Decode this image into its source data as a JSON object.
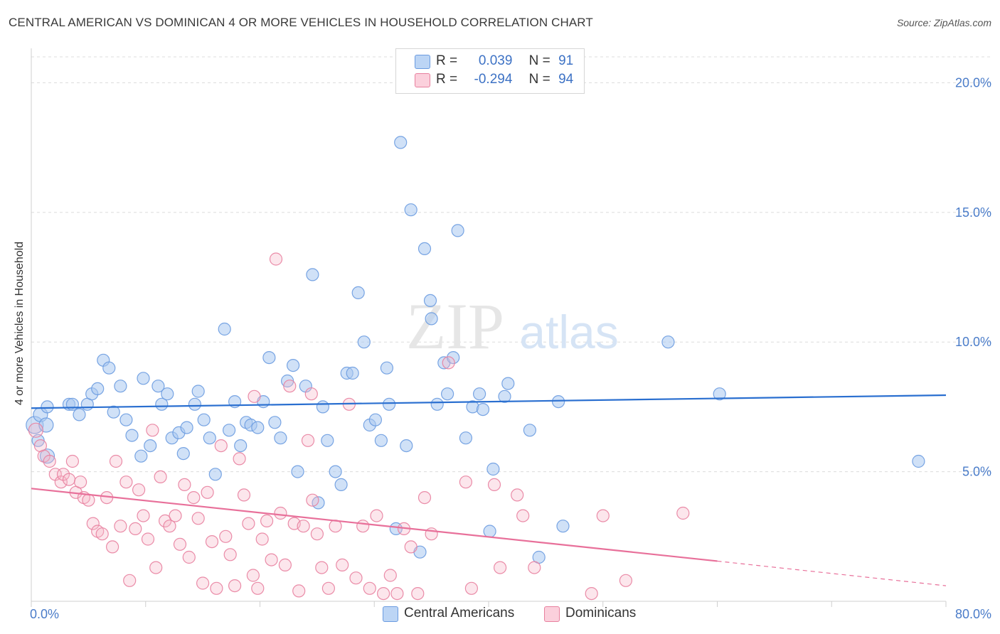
{
  "title": "CENTRAL AMERICAN VS DOMINICAN 4 OR MORE VEHICLES IN HOUSEHOLD CORRELATION CHART",
  "source": "Source: ZipAtlas.com",
  "watermark": {
    "zip": "ZIP",
    "atlas": "atlas"
  },
  "legend": {
    "r_label": "R =",
    "n_label": "N =",
    "rows": [
      {
        "r": "0.039",
        "n": "91",
        "color": "#a9c8f0"
      },
      {
        "r": "-0.294",
        "n": "94",
        "color": "#f5b6c8"
      }
    ]
  },
  "chart_data": {
    "type": "scatter",
    "ylabel": "4 or more Vehicles in Household",
    "xlabel": "",
    "xlim": [
      0,
      80
    ],
    "ylim": [
      0,
      21
    ],
    "x_tick_labels": [
      "0.0%",
      "80.0%"
    ],
    "y_ticks": [
      5,
      10,
      15,
      20
    ],
    "y_tick_labels": [
      "5.0%",
      "10.0%",
      "15.0%",
      "20.0%"
    ],
    "grid": "horizontal dashed",
    "legend_position": "top-center",
    "series": [
      {
        "name": "Central Americans",
        "color": "#a9c8f0",
        "edge": "#6a9be0",
        "trend_color": "#2a6fd0",
        "trend": {
          "x0": 0,
          "y0": 7.45,
          "x1": 80,
          "y1": 7.95
        },
        "points": [
          [
            0.3,
            6.8
          ],
          [
            0.8,
            7.2
          ],
          [
            1.3,
            6.8
          ],
          [
            1.4,
            5.6
          ],
          [
            3.3,
            7.6
          ],
          [
            3.6,
            7.6
          ],
          [
            4.2,
            7.2
          ],
          [
            4.9,
            7.6
          ],
          [
            5.3,
            8.0
          ],
          [
            5.8,
            8.2
          ],
          [
            6.3,
            9.3
          ],
          [
            6.8,
            9.0
          ],
          [
            7.2,
            7.3
          ],
          [
            7.8,
            8.3
          ],
          [
            8.3,
            7.0
          ],
          [
            8.8,
            6.4
          ],
          [
            9.6,
            5.6
          ],
          [
            9.8,
            8.6
          ],
          [
            10.4,
            6.0
          ],
          [
            11.1,
            8.3
          ],
          [
            11.4,
            7.6
          ],
          [
            11.9,
            8.0
          ],
          [
            12.3,
            6.3
          ],
          [
            12.9,
            6.5
          ],
          [
            13.3,
            5.7
          ],
          [
            13.6,
            6.7
          ],
          [
            14.3,
            7.6
          ],
          [
            14.6,
            8.1
          ],
          [
            15.1,
            7.0
          ],
          [
            15.6,
            6.3
          ],
          [
            16.1,
            4.9
          ],
          [
            16.9,
            10.5
          ],
          [
            17.3,
            6.6
          ],
          [
            17.8,
            7.7
          ],
          [
            18.3,
            6.0
          ],
          [
            18.8,
            6.9
          ],
          [
            19.2,
            6.8
          ],
          [
            19.8,
            6.7
          ],
          [
            20.3,
            7.7
          ],
          [
            20.8,
            9.4
          ],
          [
            21.3,
            6.9
          ],
          [
            21.8,
            6.3
          ],
          [
            22.4,
            8.5
          ],
          [
            22.9,
            9.1
          ],
          [
            23.3,
            5.0
          ],
          [
            24.0,
            8.3
          ],
          [
            24.6,
            12.6
          ],
          [
            25.1,
            3.8
          ],
          [
            25.5,
            7.5
          ],
          [
            25.9,
            6.2
          ],
          [
            26.6,
            5.0
          ],
          [
            27.1,
            4.5
          ],
          [
            27.6,
            8.8
          ],
          [
            28.1,
            8.8
          ],
          [
            28.6,
            11.9
          ],
          [
            29.1,
            10.0
          ],
          [
            29.6,
            6.8
          ],
          [
            30.1,
            7.0
          ],
          [
            30.6,
            6.2
          ],
          [
            31.1,
            9.0
          ],
          [
            31.3,
            7.6
          ],
          [
            31.9,
            2.8
          ],
          [
            32.3,
            17.7
          ],
          [
            32.8,
            6.0
          ],
          [
            33.2,
            15.1
          ],
          [
            34.0,
            1.9
          ],
          [
            34.4,
            13.6
          ],
          [
            34.9,
            11.6
          ],
          [
            35.0,
            10.9
          ],
          [
            35.5,
            7.6
          ],
          [
            36.1,
            9.2
          ],
          [
            36.4,
            8.0
          ],
          [
            36.9,
            9.4
          ],
          [
            37.3,
            14.3
          ],
          [
            38.0,
            6.3
          ],
          [
            38.6,
            7.5
          ],
          [
            39.2,
            8.0
          ],
          [
            39.5,
            7.4
          ],
          [
            40.1,
            2.7
          ],
          [
            40.4,
            5.1
          ],
          [
            41.4,
            7.9
          ],
          [
            41.7,
            8.4
          ],
          [
            43.6,
            6.6
          ],
          [
            44.4,
            1.7
          ],
          [
            46.1,
            7.7
          ],
          [
            46.5,
            2.9
          ],
          [
            55.7,
            10.0
          ],
          [
            60.2,
            8.0
          ],
          [
            77.6,
            5.4
          ],
          [
            0.6,
            6.2
          ],
          [
            1.4,
            7.5
          ]
        ]
      },
      {
        "name": "Dominicans",
        "color": "#f5b6c8",
        "edge": "#e8809e",
        "trend_color": "#e8709a",
        "trend": {
          "x0": 0,
          "y0": 4.35,
          "x1": 60,
          "y1": 1.55
        },
        "trend_dashed": {
          "x0": 60,
          "y0": 1.55,
          "x1": 80,
          "y1": 0.6
        },
        "points": [
          [
            0.4,
            6.6
          ],
          [
            0.8,
            6.0
          ],
          [
            1.1,
            5.6
          ],
          [
            1.6,
            5.4
          ],
          [
            2.1,
            4.9
          ],
          [
            2.6,
            4.6
          ],
          [
            2.8,
            4.9
          ],
          [
            3.3,
            4.7
          ],
          [
            3.6,
            5.4
          ],
          [
            3.9,
            4.2
          ],
          [
            4.3,
            4.6
          ],
          [
            4.6,
            4.0
          ],
          [
            5.0,
            3.9
          ],
          [
            5.4,
            3.0
          ],
          [
            5.8,
            2.7
          ],
          [
            6.2,
            2.6
          ],
          [
            6.6,
            4.0
          ],
          [
            7.1,
            2.1
          ],
          [
            7.4,
            5.4
          ],
          [
            7.8,
            2.9
          ],
          [
            8.3,
            4.6
          ],
          [
            8.6,
            0.8
          ],
          [
            9.1,
            2.8
          ],
          [
            9.4,
            4.3
          ],
          [
            9.8,
            3.3
          ],
          [
            10.2,
            2.4
          ],
          [
            10.6,
            6.6
          ],
          [
            10.9,
            1.3
          ],
          [
            11.3,
            4.8
          ],
          [
            11.7,
            3.1
          ],
          [
            12.1,
            2.9
          ],
          [
            12.6,
            3.3
          ],
          [
            13.0,
            2.2
          ],
          [
            13.4,
            4.5
          ],
          [
            13.8,
            1.7
          ],
          [
            14.2,
            4.0
          ],
          [
            14.6,
            3.2
          ],
          [
            15.0,
            0.7
          ],
          [
            15.4,
            4.2
          ],
          [
            15.8,
            2.3
          ],
          [
            16.2,
            0.5
          ],
          [
            16.6,
            6.0
          ],
          [
            17.0,
            2.5
          ],
          [
            17.4,
            1.8
          ],
          [
            17.8,
            0.6
          ],
          [
            18.2,
            5.5
          ],
          [
            18.6,
            4.1
          ],
          [
            19.0,
            3.0
          ],
          [
            19.4,
            1.0
          ],
          [
            19.8,
            0.5
          ],
          [
            20.2,
            2.4
          ],
          [
            20.6,
            3.1
          ],
          [
            21.0,
            1.6
          ],
          [
            21.4,
            13.2
          ],
          [
            21.8,
            3.4
          ],
          [
            22.2,
            1.4
          ],
          [
            22.6,
            8.3
          ],
          [
            23.0,
            3.0
          ],
          [
            23.4,
            0.4
          ],
          [
            23.8,
            2.9
          ],
          [
            24.2,
            6.2
          ],
          [
            24.6,
            3.9
          ],
          [
            25.0,
            2.6
          ],
          [
            25.4,
            1.3
          ],
          [
            26.0,
            0.5
          ],
          [
            26.6,
            2.9
          ],
          [
            27.2,
            1.4
          ],
          [
            27.8,
            7.6
          ],
          [
            28.4,
            0.9
          ],
          [
            29.0,
            2.9
          ],
          [
            29.6,
            0.5
          ],
          [
            30.2,
            3.3
          ],
          [
            30.8,
            0.3
          ],
          [
            31.4,
            1.0
          ],
          [
            32.0,
            0.3
          ],
          [
            32.6,
            2.8
          ],
          [
            33.2,
            2.1
          ],
          [
            33.8,
            0.3
          ],
          [
            34.4,
            4.0
          ],
          [
            35.0,
            2.6
          ],
          [
            36.5,
            9.2
          ],
          [
            38.0,
            4.6
          ],
          [
            38.5,
            0.5
          ],
          [
            40.5,
            4.5
          ],
          [
            41.0,
            1.3
          ],
          [
            42.5,
            4.1
          ],
          [
            43.0,
            3.3
          ],
          [
            44.0,
            1.3
          ],
          [
            49.0,
            0.3
          ],
          [
            50.0,
            3.3
          ],
          [
            52.0,
            0.8
          ],
          [
            57.0,
            3.4
          ],
          [
            19.5,
            7.9
          ],
          [
            24.5,
            8.0
          ]
        ]
      }
    ]
  }
}
